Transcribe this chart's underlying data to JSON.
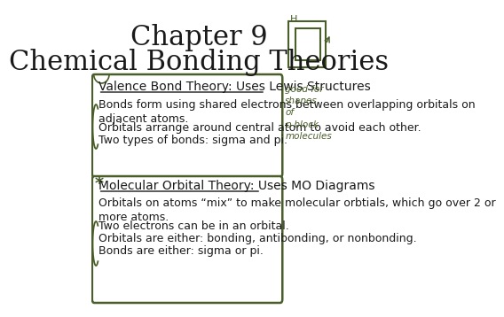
{
  "title_line1": "Chapter 9",
  "title_line2": "Chemical Bonding Theories",
  "title_fontsize": 22,
  "bg_color": "#ffffff",
  "text_color": "#1a1a1a",
  "box_color": "#4a5e2a",
  "section1_header": "Valence Bond Theory: Uses Lewis Structures",
  "section1_bullets": [
    "Bonds form using shared electrons between overlapping orbitals on\nadjacent atoms.",
    "Orbitals arrange around central atom to avoid each other.",
    "Two types of bonds: sigma and pi."
  ],
  "section2_header": "Molecular Orbital Theory: Uses MO Diagrams",
  "section2_bullets": [
    "Orbitals on atoms “mix” to make molecular orbtials, which go over 2 or\nmore atoms.",
    "Two electrons can be in an orbital.",
    "Orbitals are either: bonding, antibonding, or nonbonding.",
    "Bonds are either: sigma or pi."
  ],
  "annotation1": "good for\nshapes\nof\np-block\nmolecules",
  "header_fontsize": 10,
  "bullet_fontsize": 9
}
